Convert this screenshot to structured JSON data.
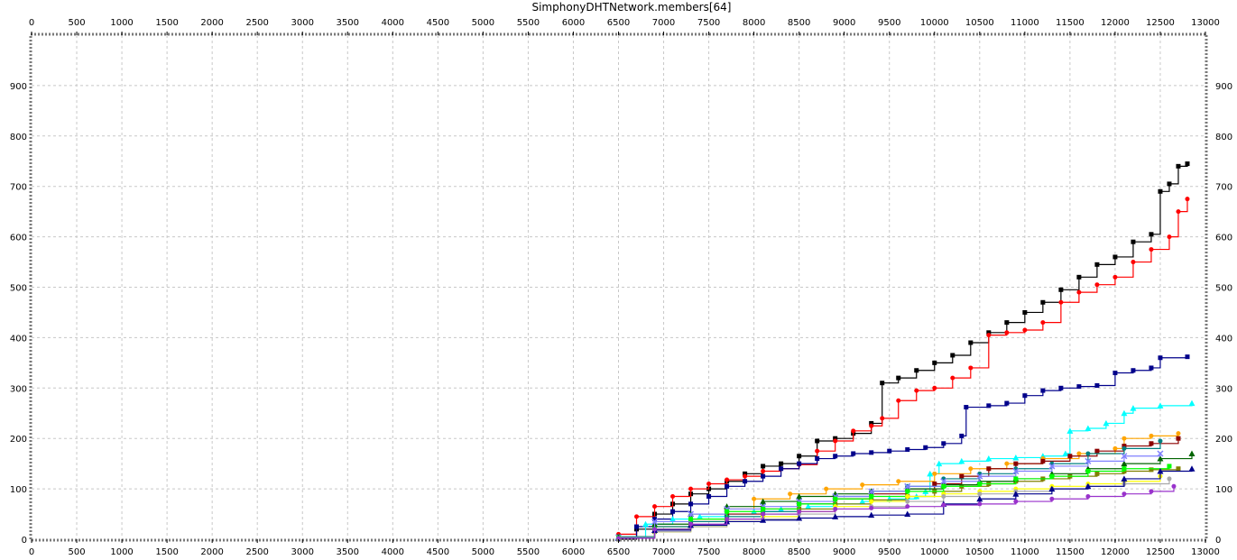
{
  "chart_data": {
    "type": "line",
    "title": "SimphonyDHTNetwork.members[64]",
    "xlabel": "",
    "ylabel": "",
    "xlim": [
      0,
      13000
    ],
    "ylim": [
      0,
      1000
    ],
    "x_ticks": [
      0,
      500,
      1000,
      1500,
      2000,
      2500,
      3000,
      3500,
      4000,
      4500,
      5000,
      5500,
      6000,
      6500,
      7000,
      7500,
      8000,
      8500,
      9000,
      9500,
      10000,
      10500,
      11000,
      11500,
      12000,
      12500,
      13000
    ],
    "y_ticks": [
      0,
      100,
      200,
      300,
      400,
      500,
      600,
      700,
      800,
      900
    ],
    "grid": true,
    "legend": "none",
    "series": [
      {
        "color": "#000000",
        "marker": "square",
        "x": [
          6500,
          6700,
          6900,
          7100,
          7300,
          7500,
          7700,
          7900,
          8100,
          8300,
          8500,
          8700,
          8900,
          9100,
          9300,
          9420,
          9600,
          9800,
          10000,
          10200,
          10400,
          10600,
          10800,
          11000,
          11200,
          11400,
          11600,
          11800,
          12000,
          12200,
          12400,
          12500,
          12600,
          12700,
          12800
        ],
        "y": [
          0,
          20,
          50,
          70,
          90,
          100,
          115,
          130,
          145,
          150,
          165,
          195,
          200,
          210,
          230,
          310,
          320,
          335,
          350,
          365,
          390,
          410,
          430,
          450,
          470,
          495,
          520,
          545,
          560,
          590,
          605,
          690,
          705,
          740,
          745
        ]
      },
      {
        "color": "#ff0000",
        "marker": "circle",
        "x": [
          6500,
          6700,
          6900,
          7100,
          7300,
          7500,
          7700,
          7900,
          8100,
          8300,
          8500,
          8700,
          8900,
          9100,
          9300,
          9420,
          9600,
          9800,
          10000,
          10200,
          10400,
          10600,
          10800,
          11000,
          11200,
          11400,
          11600,
          11800,
          12000,
          12200,
          12400,
          12600,
          12700,
          12800
        ],
        "y": [
          10,
          45,
          65,
          85,
          100,
          110,
          118,
          125,
          135,
          140,
          148,
          175,
          195,
          215,
          225,
          240,
          275,
          295,
          300,
          320,
          340,
          405,
          410,
          415,
          430,
          470,
          490,
          505,
          520,
          550,
          575,
          600,
          650,
          675
        ]
      },
      {
        "color": "#00008b",
        "marker": "square",
        "x": [
          6500,
          6700,
          6900,
          7100,
          7300,
          7500,
          7700,
          7900,
          8100,
          8300,
          8500,
          8700,
          8900,
          9100,
          9300,
          9500,
          9700,
          9900,
          10100,
          10300,
          10350,
          10600,
          10800,
          11000,
          11200,
          11400,
          11600,
          11800,
          12000,
          12200,
          12400,
          12500,
          12800
        ],
        "y": [
          5,
          25,
          40,
          55,
          70,
          85,
          105,
          115,
          125,
          140,
          150,
          160,
          165,
          170,
          172,
          175,
          178,
          182,
          190,
          205,
          262,
          265,
          270,
          285,
          295,
          300,
          303,
          305,
          330,
          335,
          340,
          360,
          362
        ]
      },
      {
        "color": "#00ffff",
        "marker": "triangle",
        "x": [
          6500,
          6800,
          7100,
          7400,
          7700,
          8000,
          8300,
          8600,
          8900,
          9200,
          9500,
          9800,
          9900,
          9950,
          10050,
          10300,
          10600,
          10900,
          11200,
          11450,
          11500,
          11700,
          11900,
          12100,
          12200,
          12500,
          12850
        ],
        "y": [
          5,
          30,
          40,
          45,
          50,
          55,
          60,
          65,
          70,
          75,
          80,
          85,
          95,
          130,
          150,
          155,
          160,
          162,
          165,
          170,
          215,
          220,
          230,
          250,
          260,
          265,
          270
        ]
      },
      {
        "color": "#ffa500",
        "marker": "circle",
        "x": [
          6500,
          6900,
          7300,
          7700,
          8000,
          8400,
          8800,
          9200,
          9600,
          10000,
          10400,
          10800,
          11200,
          11600,
          12000,
          12100,
          12400,
          12700
        ],
        "y": [
          5,
          25,
          40,
          60,
          80,
          90,
          100,
          108,
          115,
          130,
          140,
          150,
          160,
          170,
          180,
          200,
          205,
          210
        ]
      },
      {
        "color": "#8b0000",
        "marker": "square",
        "x": [
          6500,
          6900,
          7300,
          7700,
          8100,
          8500,
          8900,
          9300,
          9700,
          10000,
          10300,
          10600,
          10900,
          11200,
          11500,
          11800,
          12100,
          12400,
          12700
        ],
        "y": [
          5,
          20,
          35,
          50,
          60,
          70,
          80,
          90,
          100,
          110,
          125,
          140,
          150,
          155,
          165,
          175,
          185,
          190,
          200
        ]
      },
      {
        "color": "#808000",
        "marker": "square",
        "x": [
          6500,
          6900,
          7300,
          7700,
          8100,
          8500,
          8900,
          9300,
          9700,
          10000,
          10300,
          10600,
          10900,
          11200,
          11500,
          11800,
          12100,
          12400,
          12700
        ],
        "y": [
          3,
          15,
          28,
          40,
          50,
          60,
          70,
          78,
          85,
          95,
          105,
          110,
          115,
          120,
          125,
          130,
          135,
          138,
          140
        ]
      },
      {
        "color": "#008080",
        "marker": "circle",
        "x": [
          6500,
          6900,
          7300,
          7700,
          8100,
          8500,
          8900,
          9300,
          9700,
          10100,
          10500,
          10900,
          11300,
          11700,
          12100,
          12500
        ],
        "y": [
          5,
          25,
          35,
          45,
          55,
          70,
          85,
          95,
          105,
          120,
          130,
          140,
          150,
          170,
          180,
          195
        ]
      },
      {
        "color": "#006400",
        "marker": "triangle",
        "x": [
          6500,
          6900,
          7300,
          7700,
          8100,
          8500,
          8900,
          9300,
          9700,
          10100,
          10500,
          10900,
          11300,
          11700,
          12100,
          12500,
          12850
        ],
        "y": [
          4,
          30,
          50,
          65,
          75,
          85,
          90,
          95,
          100,
          108,
          115,
          120,
          130,
          140,
          150,
          160,
          170
        ]
      },
      {
        "color": "#8080ff",
        "marker": "cross",
        "x": [
          6500,
          6900,
          7300,
          7700,
          8100,
          8500,
          8900,
          9300,
          9700,
          10100,
          10500,
          10900,
          11300,
          11700,
          12100,
          12500
        ],
        "y": [
          4,
          35,
          50,
          60,
          65,
          75,
          85,
          95,
          105,
          115,
          125,
          135,
          145,
          155,
          165,
          170
        ]
      },
      {
        "color": "#00ff00",
        "marker": "square",
        "x": [
          6500,
          6900,
          7300,
          7700,
          8100,
          8500,
          8900,
          9300,
          9700,
          10100,
          10500,
          10900,
          11300,
          11700,
          12100,
          12600
        ],
        "y": [
          3,
          20,
          40,
          55,
          60,
          70,
          80,
          85,
          95,
          105,
          110,
          120,
          125,
          135,
          140,
          145
        ]
      },
      {
        "color": "#ffff00",
        "marker": "circle",
        "x": [
          6500,
          6900,
          7300,
          7700,
          8100,
          8500,
          8900,
          9300,
          9700,
          10100,
          10500,
          10900,
          11300,
          11700,
          12100,
          12500
        ],
        "y": [
          2,
          15,
          25,
          35,
          45,
          55,
          65,
          75,
          85,
          90,
          95,
          100,
          105,
          110,
          115,
          125
        ]
      },
      {
        "color": "#a9a9a9",
        "marker": "circle",
        "x": [
          6500,
          6900,
          7300,
          7700,
          8100,
          8500,
          8900,
          9300,
          9700,
          10100,
          10500,
          10900,
          11300,
          11700,
          12100,
          12600
        ],
        "y": [
          2,
          15,
          25,
          35,
          40,
          50,
          60,
          65,
          75,
          85,
          90,
          95,
          100,
          105,
          110,
          120
        ]
      },
      {
        "color": "#00008b",
        "marker": "triangle",
        "x": [
          6500,
          6900,
          7300,
          7700,
          8100,
          8500,
          8900,
          9300,
          9700,
          10100,
          10500,
          10900,
          11300,
          11700,
          12100,
          12500,
          12850
        ],
        "y": [
          2,
          18,
          28,
          35,
          38,
          42,
          45,
          48,
          50,
          70,
          80,
          90,
          100,
          105,
          120,
          135,
          140
        ]
      },
      {
        "color": "#9932cc",
        "marker": "circle",
        "x": [
          6500,
          6900,
          7300,
          7700,
          8100,
          8500,
          8900,
          9300,
          9700,
          10100,
          10500,
          10900,
          11300,
          11700,
          12100,
          12400,
          12650
        ],
        "y": [
          2,
          20,
          30,
          40,
          50,
          55,
          60,
          62,
          65,
          68,
          70,
          75,
          80,
          85,
          90,
          95,
          105
        ]
      }
    ]
  }
}
